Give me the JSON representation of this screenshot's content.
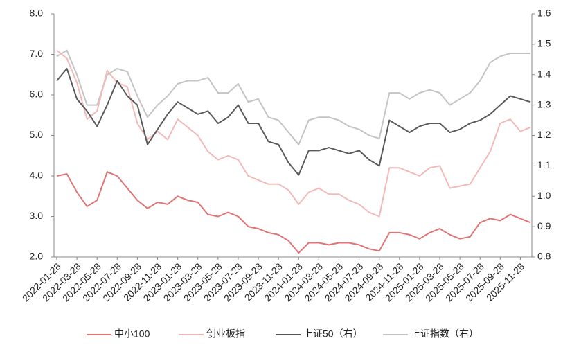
{
  "chart_data": {
    "type": "line",
    "categories": [
      "2022-01-28",
      null,
      "2022-03-28",
      null,
      "2022-05-28",
      null,
      "2022-07-28",
      null,
      "2022-09-28",
      null,
      "2022-11-28",
      null,
      "2023-01-28",
      null,
      "2023-03-28",
      null,
      "2023-05-28",
      null,
      "2023-07-28",
      null,
      "2023-09-28",
      null,
      "2023-11-28",
      null,
      "2024-01-28",
      null,
      "2024-03-28",
      null,
      "2024-05-28",
      null,
      "2024-07-28",
      null,
      "2024-09-28",
      null,
      "2024-11-28",
      null,
      "2025-01-28",
      null,
      "2025-03-28",
      null,
      "2025-05-28",
      null,
      "2025-07-28",
      null,
      "2025-09-28",
      null,
      "2025-11-28",
      null
    ],
    "series": [
      {
        "name": "中小100",
        "color": "#e07474",
        "values": [
          4.0,
          4.05,
          3.6,
          3.25,
          3.4,
          4.1,
          4.0,
          3.7,
          3.4,
          3.2,
          3.35,
          3.3,
          3.5,
          3.4,
          3.35,
          3.05,
          3.0,
          3.1,
          3.0,
          2.75,
          2.7,
          2.6,
          2.55,
          2.4,
          2.1,
          2.35,
          2.35,
          2.3,
          2.35,
          2.35,
          2.3,
          2.2,
          2.15,
          2.6,
          2.6,
          2.55,
          2.45,
          2.6,
          2.7,
          2.55,
          2.45,
          2.5,
          2.85,
          2.95,
          2.9,
          3.05,
          2.95,
          2.85
        ]
      },
      {
        "name": "创业板指",
        "color": "#f2b9b9",
        "values": [
          7.1,
          6.9,
          6.3,
          5.4,
          5.6,
          6.6,
          6.3,
          6.2,
          5.3,
          4.9,
          5.1,
          4.9,
          5.4,
          5.2,
          5.0,
          4.6,
          4.4,
          4.5,
          4.4,
          4.0,
          3.9,
          3.8,
          3.8,
          3.65,
          3.3,
          3.6,
          3.7,
          3.55,
          3.55,
          3.4,
          3.3,
          3.1,
          3.0,
          4.2,
          4.2,
          4.1,
          4.0,
          4.2,
          4.25,
          3.7,
          3.75,
          3.8,
          4.2,
          4.6,
          5.3,
          5.4,
          5.1,
          5.2
        ]
      },
      {
        "name": "上证50（右）",
        "color": "#595959",
        "axis": "y2",
        "values": [
          1.38,
          1.42,
          1.32,
          1.28,
          1.23,
          1.3,
          1.38,
          1.33,
          1.3,
          1.17,
          1.22,
          1.27,
          1.31,
          1.29,
          1.27,
          1.28,
          1.24,
          1.26,
          1.3,
          1.24,
          1.24,
          1.18,
          1.17,
          1.11,
          1.07,
          1.15,
          1.15,
          1.16,
          1.15,
          1.14,
          1.15,
          1.12,
          1.1,
          1.25,
          1.23,
          1.21,
          1.23,
          1.24,
          1.24,
          1.21,
          1.22,
          1.24,
          1.25,
          1.27,
          1.3,
          1.33,
          1.32,
          1.31
        ]
      },
      {
        "name": "上证指数（右）",
        "color": "#c4c4c4",
        "axis": "y2",
        "values": [
          1.46,
          1.48,
          1.4,
          1.3,
          1.3,
          1.4,
          1.42,
          1.41,
          1.33,
          1.26,
          1.3,
          1.33,
          1.37,
          1.38,
          1.38,
          1.39,
          1.34,
          1.34,
          1.37,
          1.31,
          1.32,
          1.26,
          1.25,
          1.21,
          1.17,
          1.25,
          1.26,
          1.26,
          1.25,
          1.23,
          1.22,
          1.2,
          1.19,
          1.34,
          1.34,
          1.32,
          1.34,
          1.35,
          1.34,
          1.3,
          1.32,
          1.34,
          1.38,
          1.44,
          1.46,
          1.47,
          1.47,
          1.47
        ]
      }
    ],
    "ylim": [
      2,
      8
    ],
    "yticks": [
      {
        "value": 2,
        "label": "2.0"
      },
      {
        "value": 3,
        "label": "3.0"
      },
      {
        "value": 4,
        "label": "4.0"
      },
      {
        "value": 5,
        "label": "5.0"
      },
      {
        "value": 6,
        "label": "6.0"
      },
      {
        "value": 7,
        "label": "7.0"
      },
      {
        "value": 8,
        "label": "8.0"
      }
    ],
    "y2lim": [
      0.8,
      1.6
    ],
    "y2ticks": [
      0.8,
      0.9,
      {
        "value": 1.0,
        "label": "1.0"
      },
      1.1,
      1.2,
      1.3,
      1.4,
      1.5,
      1.6
    ],
    "legend": "bottom",
    "grid": false
  }
}
